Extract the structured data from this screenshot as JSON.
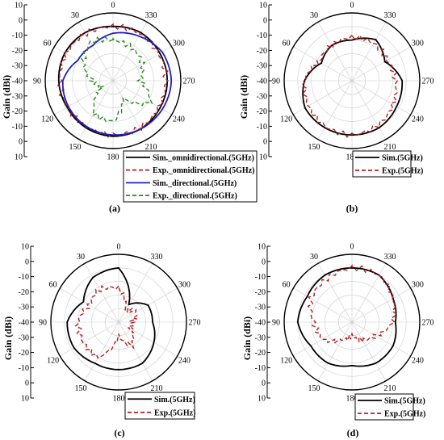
{
  "chart_data": [
    {
      "type": "polar-line",
      "panel_label": "(a)",
      "ylabel": "Gain  (dBi)",
      "r_ticks": [
        "10",
        "0",
        "-10",
        "-20",
        "-30",
        "-40",
        "-30",
        "-20",
        "-10",
        "0",
        "10"
      ],
      "angle_labels": [
        "0",
        "330",
        "300",
        "270",
        "240",
        "210",
        "180",
        "150",
        "120",
        "90",
        "60",
        "30"
      ],
      "rlim": [
        -40,
        10
      ],
      "angle_direction": "clockwise-labels-decreasing",
      "series": [
        {
          "name": "Sim._omnidirectional.(5GHz)",
          "color": "#000000",
          "dash": "solid",
          "theta": [
            0,
            30,
            60,
            90,
            120,
            150,
            180,
            210,
            240,
            270,
            300,
            330,
            360
          ],
          "gain": [
            0,
            1,
            1,
            0,
            -1,
            0,
            1,
            1,
            0,
            0,
            0,
            1,
            0
          ]
        },
        {
          "name": "Exp._omnidirectional.(5GHz)",
          "color": "#b22222",
          "dash": "dashed",
          "theta": [
            0,
            30,
            60,
            90,
            120,
            150,
            180,
            210,
            240,
            270,
            300,
            330,
            360
          ],
          "gain": [
            0,
            0,
            0,
            -1,
            -1,
            -1,
            0,
            0,
            -1,
            -1,
            -1,
            0,
            0
          ]
        },
        {
          "name": "Sim._directional.(5GHz)",
          "color": "#1f1fbf",
          "dash": "solid",
          "theta": [
            0,
            30,
            60,
            90,
            120,
            150,
            180,
            210,
            240,
            270,
            300,
            330,
            360
          ],
          "gain": [
            -5,
            -10,
            -10,
            -3,
            -2,
            -1,
            0,
            1,
            2,
            3,
            2,
            -2,
            -5
          ]
        },
        {
          "name": "Exp._directional.(5GHz)",
          "color": "#2e8b22",
          "dash": "dashed",
          "theta": [
            0,
            30,
            60,
            90,
            120,
            150,
            180,
            210,
            240,
            270,
            300,
            330,
            360
          ],
          "gain": [
            -10,
            -7,
            -15,
            -25,
            -30,
            -12,
            -10,
            -25,
            -8,
            -20,
            -15,
            -12,
            -10
          ]
        }
      ]
    },
    {
      "type": "polar-line",
      "panel_label": "(b)",
      "ylabel": "Gain  (dBi)",
      "r_ticks": [
        "10",
        "0",
        "-10",
        "-20",
        "-30",
        "-40",
        "-30",
        "-20",
        "-10",
        "0",
        "10"
      ],
      "angle_labels": [
        "0",
        "330",
        "300",
        "270",
        "240",
        "210",
        "180",
        "150",
        "120",
        "90",
        "60",
        "30"
      ],
      "rlim": [
        -40,
        10
      ],
      "series": [
        {
          "name": "Sim.(5GHz)",
          "color": "#000000",
          "dash": "solid",
          "theta": [
            0,
            30,
            60,
            90,
            120,
            150,
            180,
            210,
            240,
            270,
            300,
            330,
            360
          ],
          "gain": [
            -10,
            -10,
            -14,
            -5,
            0,
            0,
            0,
            0,
            -2,
            -3,
            -12,
            -5,
            -10
          ]
        },
        {
          "name": "Exp.(5GHz)",
          "color": "#b22222",
          "dash": "dashed",
          "theta": [
            0,
            30,
            60,
            90,
            120,
            150,
            180,
            210,
            240,
            270,
            300,
            330,
            360
          ],
          "gain": [
            -8,
            -10,
            -12,
            -5,
            -3,
            -1,
            0,
            -2,
            -5,
            -8,
            -10,
            -8,
            -8
          ]
        }
      ]
    },
    {
      "type": "polar-line",
      "panel_label": "(c)",
      "ylabel": "Gain  (dBi)",
      "r_ticks": [
        "10",
        "0",
        "-10",
        "-20",
        "-30",
        "-40",
        "-30",
        "-20",
        "-10",
        "0",
        "10"
      ],
      "angle_labels": [
        "0",
        "330",
        "300",
        "270",
        "240",
        "210",
        "180",
        "150",
        "120",
        "90",
        "60",
        "30"
      ],
      "rlim": [
        -40,
        10
      ],
      "series": [
        {
          "name": "Sim.(5GHz)",
          "color": "#000000",
          "dash": "solid",
          "theta": [
            0,
            30,
            60,
            90,
            120,
            150,
            180,
            210,
            240,
            270,
            300,
            330,
            360
          ],
          "gain": [
            0,
            -2,
            -10,
            -2,
            -2,
            -5,
            -5,
            -5,
            -10,
            -15,
            -15,
            -25,
            0
          ]
        },
        {
          "name": "Exp.(5GHz)",
          "color": "#b22222",
          "dash": "dashed",
          "theta": [
            0,
            30,
            60,
            90,
            120,
            150,
            180,
            210,
            240,
            270,
            300,
            330,
            360
          ],
          "gain": [
            -15,
            -12,
            -15,
            -10,
            -10,
            -10,
            -30,
            -20,
            -30,
            -30,
            -25,
            -30,
            -15
          ]
        }
      ]
    },
    {
      "type": "polar-line",
      "panel_label": "(d)",
      "ylabel": "Gain  (dBi)",
      "r_ticks": [
        "10",
        "0",
        "-10",
        "-20",
        "-30",
        "-40",
        "-30",
        "-20",
        "-10",
        "0",
        "10"
      ],
      "angle_labels": [
        "0",
        "330",
        "300",
        "270",
        "240",
        "210",
        "180",
        "150",
        "120",
        "90",
        "60",
        "30"
      ],
      "rlim": [
        -40,
        10
      ],
      "series": [
        {
          "name": "Sim.(5GHz)",
          "color": "#000000",
          "dash": "solid",
          "theta": [
            0,
            30,
            60,
            90,
            120,
            150,
            180,
            210,
            240,
            270,
            300,
            330,
            360
          ],
          "gain": [
            0,
            0,
            -2,
            0,
            -5,
            -5,
            -8,
            -5,
            -5,
            -8,
            -5,
            0,
            0
          ]
        },
        {
          "name": "Exp.(5GHz)",
          "color": "#b22222",
          "dash": "dashed",
          "theta": [
            0,
            30,
            60,
            90,
            120,
            150,
            180,
            210,
            240,
            270,
            300,
            330,
            360
          ],
          "gain": [
            0,
            -3,
            -5,
            -12,
            -15,
            -25,
            -30,
            -25,
            -20,
            -10,
            -5,
            0,
            0
          ]
        }
      ]
    }
  ]
}
